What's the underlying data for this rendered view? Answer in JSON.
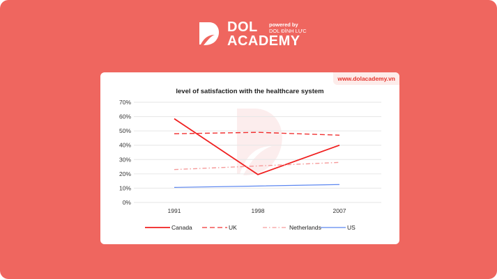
{
  "brand": {
    "name_line1": "DOL",
    "name_line2": "ACADEMY",
    "powered_by": "powered by",
    "powered_name": "DOL ĐÌNH LỰC",
    "website": "www.dolacademy.vn"
  },
  "chart_data": {
    "type": "line",
    "title": "level of satisfaction with the healthcare system",
    "categories": [
      "1991",
      "1998",
      "2007"
    ],
    "ylim": [
      0,
      70
    ],
    "yticks": [
      "0%",
      "10%",
      "20%",
      "30%",
      "40%",
      "50%",
      "60%",
      "70%"
    ],
    "grid": true,
    "legend_position": "bottom",
    "series": [
      {
        "name": "Canada",
        "values": [
          58.5,
          19.5,
          40
        ],
        "color": "#F01E1E",
        "style": "solid"
      },
      {
        "name": "UK",
        "values": [
          48,
          49,
          47
        ],
        "color": "#F03030",
        "style": "dashed"
      },
      {
        "name": "Netherlands",
        "values": [
          23,
          25.5,
          28
        ],
        "color": "#F59A9A",
        "style": "dashdot"
      },
      {
        "name": "US",
        "values": [
          10.5,
          11.5,
          12.5
        ],
        "color": "#5B86F0",
        "style": "solid"
      }
    ]
  }
}
